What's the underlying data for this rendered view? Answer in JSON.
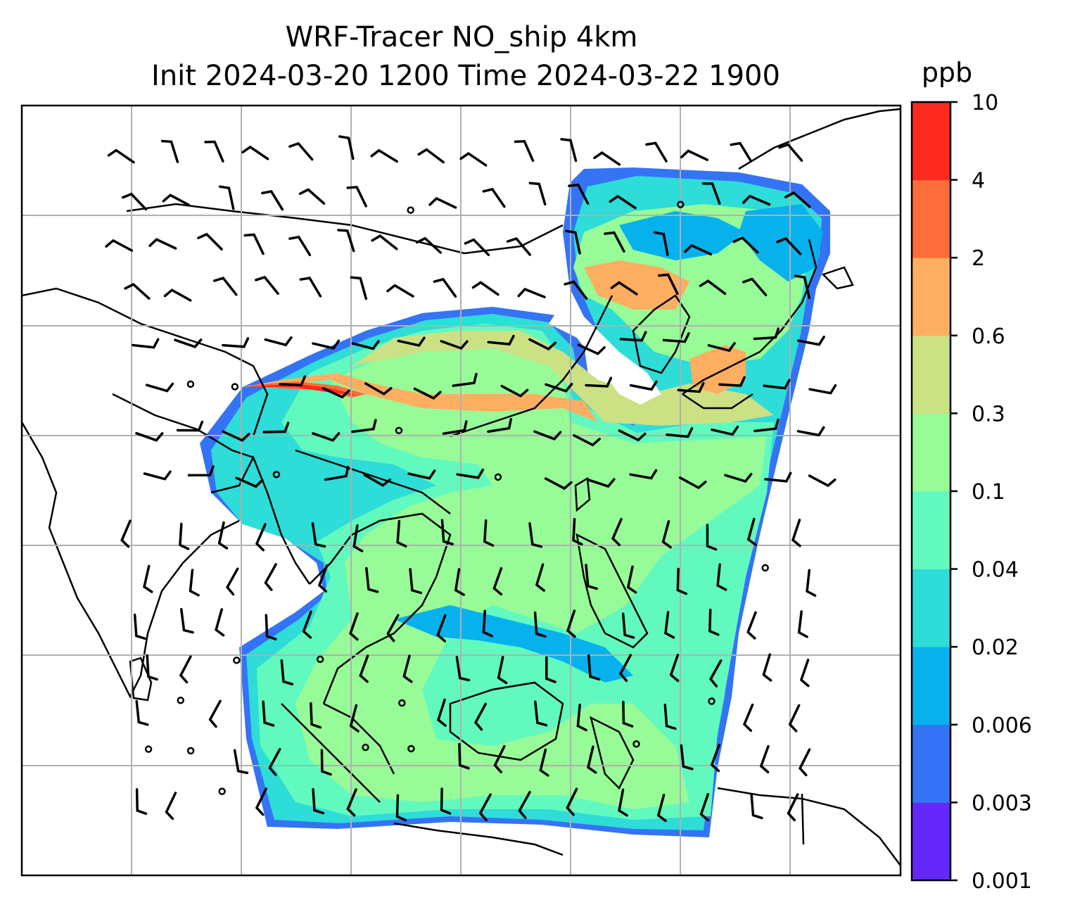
{
  "chart_data": {
    "type": "heatmap",
    "title": [
      "WRF-Tracer NO_ship 4km",
      "Init 2024-03-20 1200 Time 2024-03-22 1900"
    ],
    "variable": "NO_ship",
    "resolution": "4km",
    "init_time": "2024-03-20 1200",
    "valid_time": "2024-03-22 1900",
    "colorbar": {
      "unit": "ppb",
      "levels": [
        "0.001",
        "0.003",
        "0.006",
        "0.02",
        "0.04",
        "0.1",
        "0.3",
        "0.6",
        "2",
        "4",
        "10"
      ],
      "colors": [
        "#6429fa",
        "#3573f5",
        "#06b1ec",
        "#2edcd8",
        "#62f9bf",
        "#97fb97",
        "#cbe184",
        "#fdae61",
        "#fd6d39",
        "#fc291c"
      ]
    },
    "overlays": [
      "coastlines",
      "country-borders",
      "gridlines",
      "wind-barbs"
    ],
    "grid": true
  }
}
